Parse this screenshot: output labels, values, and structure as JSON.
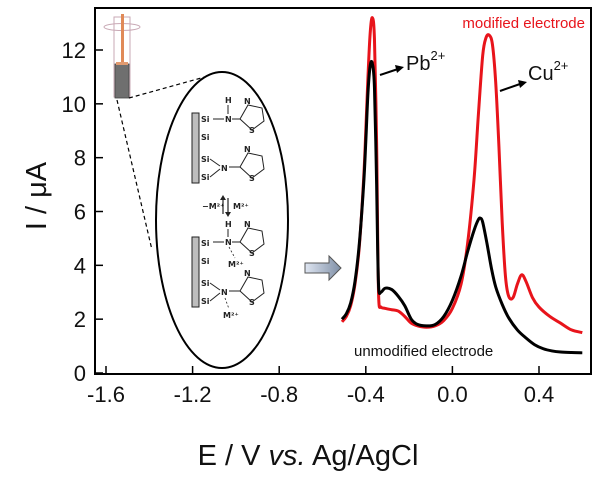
{
  "chart_data": {
    "type": "line",
    "title": "",
    "xlabel": "E / V",
    "xlabel_italic": "vs.",
    "xlabel_suffix": "Ag/AgCl",
    "ylabel": "I / μA",
    "xlim": [
      -1.65,
      0.6
    ],
    "ylim": [
      0,
      13.5
    ],
    "xticks": [
      -1.6,
      -1.2,
      -0.8,
      -0.4,
      0.0,
      0.4
    ],
    "xtick_labels": [
      "-1.6",
      "-1.2",
      "-0.8",
      "-0.4",
      "0.0",
      "0.4"
    ],
    "yticks": [
      0,
      2,
      4,
      6,
      8,
      10,
      12
    ],
    "ytick_labels": [
      "0",
      "2",
      "4",
      "6",
      "8",
      "10",
      "12"
    ],
    "grid": false,
    "series": [
      {
        "name": "modified electrode",
        "color": "#e8141b",
        "x": [
          -0.51,
          -0.49,
          -0.47,
          -0.45,
          -0.43,
          -0.41,
          -0.4,
          -0.39,
          -0.38,
          -0.37,
          -0.36,
          -0.35,
          -0.345,
          -0.34,
          -0.33,
          -0.31,
          -0.28,
          -0.25,
          -0.22,
          -0.19,
          -0.16,
          -0.12,
          -0.08,
          -0.04,
          0.0,
          0.04,
          0.07,
          0.1,
          0.12,
          0.14,
          0.155,
          0.17,
          0.185,
          0.2,
          0.215,
          0.23,
          0.245,
          0.26,
          0.28,
          0.3,
          0.32,
          0.34,
          0.37,
          0.4,
          0.45,
          0.5,
          0.55,
          0.6
        ],
        "y": [
          1.9,
          2.1,
          2.5,
          3.3,
          4.7,
          7.2,
          9.0,
          11.0,
          12.6,
          13.2,
          12.4,
          8.5,
          5.0,
          2.7,
          2.45,
          2.4,
          2.35,
          2.3,
          2.1,
          1.85,
          1.75,
          1.7,
          1.75,
          1.95,
          2.4,
          3.3,
          4.8,
          7.2,
          9.6,
          11.8,
          12.45,
          12.55,
          12.2,
          10.8,
          8.4,
          5.6,
          3.6,
          2.85,
          2.8,
          3.3,
          3.65,
          3.4,
          2.8,
          2.45,
          2.1,
          1.85,
          1.6,
          1.5
        ]
      },
      {
        "name": "unmodified electrode",
        "color": "#000000",
        "x": [
          -0.51,
          -0.49,
          -0.47,
          -0.45,
          -0.43,
          -0.41,
          -0.4,
          -0.39,
          -0.38,
          -0.37,
          -0.36,
          -0.35,
          -0.345,
          -0.34,
          -0.33,
          -0.31,
          -0.28,
          -0.25,
          -0.22,
          -0.19,
          -0.16,
          -0.12,
          -0.08,
          -0.04,
          0.0,
          0.04,
          0.07,
          0.1,
          0.12,
          0.13,
          0.14,
          0.16,
          0.18,
          0.2,
          0.23,
          0.26,
          0.3,
          0.34,
          0.38,
          0.42,
          0.46,
          0.5,
          0.55,
          0.6
        ],
        "y": [
          2.0,
          2.2,
          2.6,
          3.4,
          4.8,
          7.0,
          8.6,
          10.4,
          11.4,
          11.5,
          10.6,
          7.0,
          4.5,
          3.1,
          3.0,
          3.15,
          3.1,
          2.85,
          2.5,
          2.0,
          1.8,
          1.75,
          1.8,
          2.1,
          2.7,
          3.6,
          4.5,
          5.3,
          5.7,
          5.75,
          5.6,
          4.8,
          3.9,
          3.2,
          2.55,
          2.05,
          1.6,
          1.3,
          1.05,
          0.9,
          0.82,
          0.78,
          0.76,
          0.75
        ]
      }
    ],
    "legend": [
      {
        "label": "modified electrode",
        "color": "#e8141b",
        "placement": "top-right"
      },
      {
        "label": "unmodified electrode",
        "color": "#000000",
        "placement": "bottom-right"
      }
    ],
    "annotations": [
      {
        "text": "Pb",
        "superscript": "2+",
        "points_to": {
          "x": -0.37,
          "y": 11.3
        }
      },
      {
        "text": "Cu",
        "superscript": "2+",
        "points_to": {
          "x": 0.2,
          "y": 10.6
        }
      }
    ]
  },
  "inset": {
    "description": "electrode schematic with thiazole-functionalized silica surface",
    "electrode_icon": "electrode-icon",
    "surface_label": "Si",
    "amine_label": "N",
    "hydrogen_label": "H",
    "thiazole_n": "N",
    "thiazole_s": "S",
    "equilibrium_left": "−M²⁺",
    "equilibrium_right": "M²⁺",
    "metal_label": "M²⁺",
    "arrow_icon": "right-arrow-icon"
  }
}
